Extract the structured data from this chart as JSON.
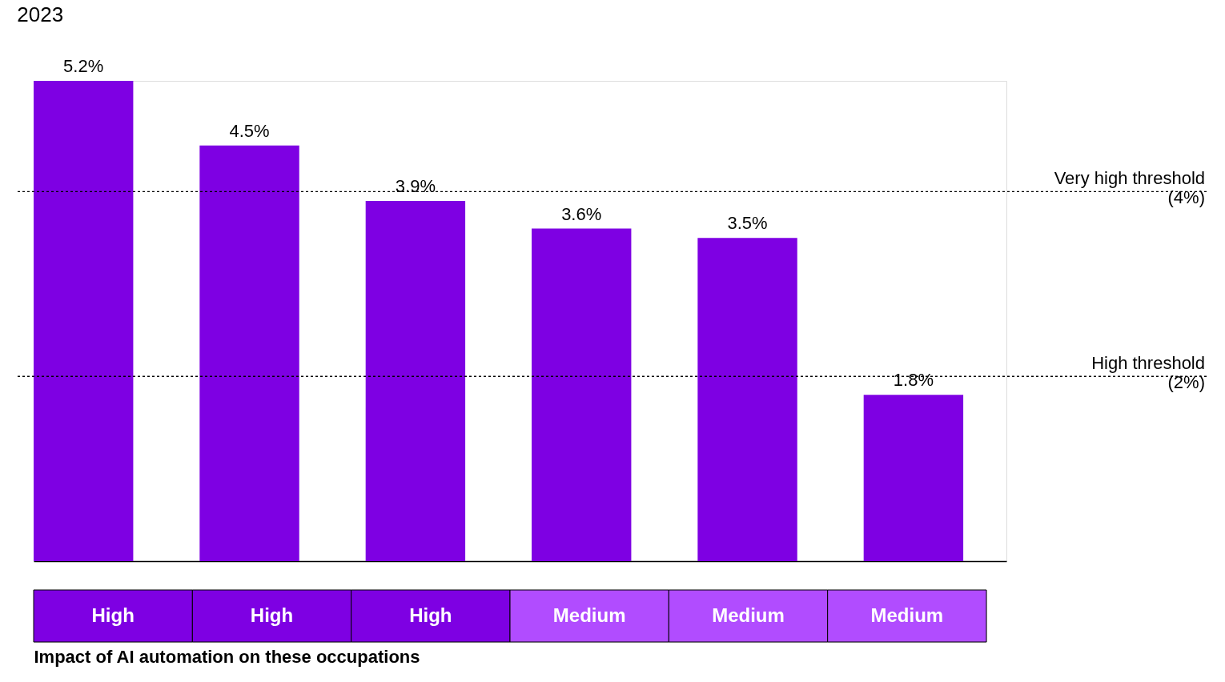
{
  "chart_data": {
    "type": "bar",
    "title": "2023",
    "xlabel": "Impact of AI automation on these occupations",
    "categories": [
      "High",
      "High",
      "High",
      "Medium",
      "Medium",
      "Medium"
    ],
    "values": [
      5.2,
      4.5,
      3.9,
      3.6,
      3.5,
      1.8
    ],
    "color": "#7e00e3",
    "value_labels": [
      "5.2%",
      "4.5%",
      "3.9%",
      "3.6%",
      "3.5%",
      "1.8%"
    ],
    "ref_lines": [
      {
        "axis": "y",
        "value": 4,
        "label": "Very high threshold\n(4%)",
        "line_style": "dotted"
      },
      {
        "axis": "y",
        "value": 2,
        "label": "High threshold\n(2%)",
        "line_style": "dotted"
      }
    ],
    "grid": false,
    "legend": false
  }
}
